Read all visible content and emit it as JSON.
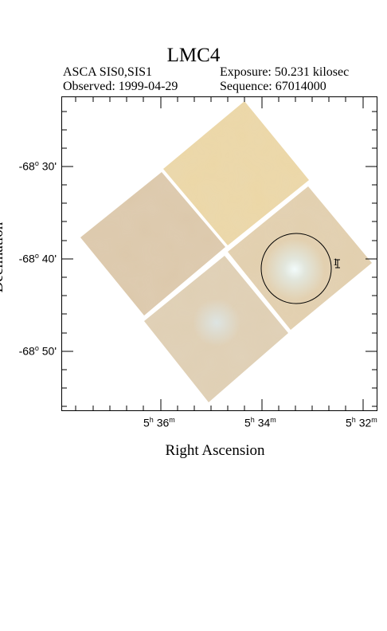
{
  "plot": {
    "title": "LMC4",
    "mission": "ASCA SIS0,SIS1",
    "observed": "Observed: 1999-04-29",
    "exposure": "Exposure: 50.231 kilosec",
    "sequence": "Sequence: 67014000",
    "xlabel": "Right Ascension",
    "ylabel": "Declination",
    "source_label": "1"
  },
  "ra_ticks": [
    {
      "h": "5",
      "m": "36",
      "unit_h": "h",
      "unit_m": "m"
    },
    {
      "h": "5",
      "m": "34",
      "unit_h": "h",
      "unit_m": "m"
    },
    {
      "h": "5",
      "m": "32",
      "unit_h": "h",
      "unit_m": "m"
    }
  ],
  "dec_ticks": [
    {
      "deg": "-68",
      "min": "30'"
    },
    {
      "deg": "-68",
      "min": "40'"
    },
    {
      "deg": "-68",
      "min": "50'"
    }
  ],
  "colors": {
    "chip_warm": "#e8d3a3",
    "chip_tan": "#d9c7a8",
    "source_glow": "#e9f3f3",
    "frame": "#000000"
  }
}
